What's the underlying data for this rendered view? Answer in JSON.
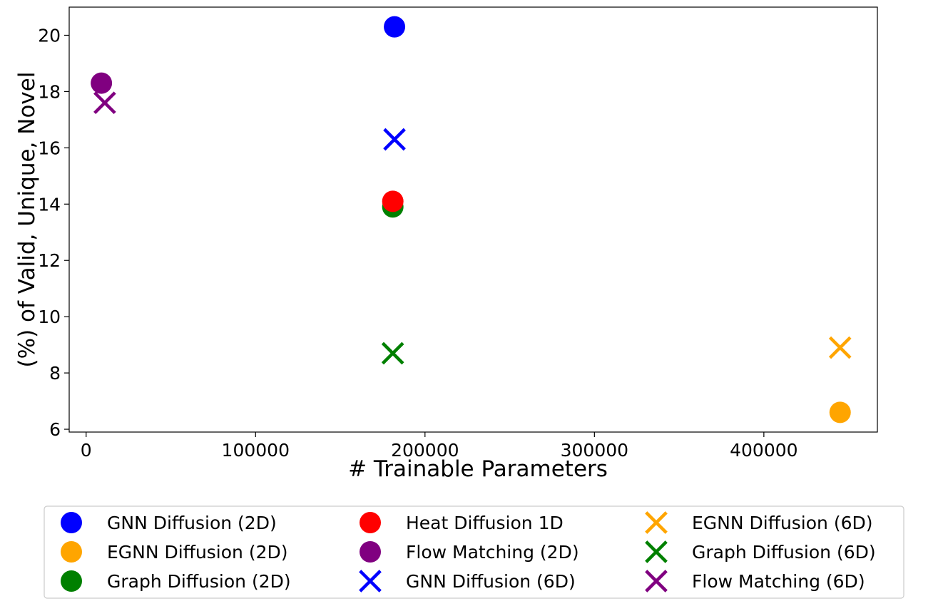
{
  "chart_data": {
    "type": "scatter",
    "title": "",
    "xlabel": "# Trainable Parameters",
    "ylabel": "(%) of Valid, Unique, Novel",
    "xlim": [
      -10000,
      467000
    ],
    "ylim": [
      5.9,
      21.0
    ],
    "xticks": [
      0,
      100000,
      200000,
      300000,
      400000
    ],
    "yticks": [
      6,
      8,
      10,
      12,
      14,
      16,
      18,
      20
    ],
    "grid": false,
    "legend_position": "bottom",
    "series": [
      {
        "name": "GNN Diffusion (2D)",
        "marker": "circle",
        "color": "#0000ff",
        "x": [
          182000
        ],
        "y": [
          20.3
        ]
      },
      {
        "name": "EGNN Diffusion (2D)",
        "marker": "circle",
        "color": "#ffa500",
        "x": [
          445000
        ],
        "y": [
          6.6
        ]
      },
      {
        "name": "Graph Diffusion (2D)",
        "marker": "circle",
        "color": "#008000",
        "x": [
          181000
        ],
        "y": [
          13.9
        ]
      },
      {
        "name": "Heat Diffusion 1D",
        "marker": "circle",
        "color": "#ff0000",
        "x": [
          181000
        ],
        "y": [
          14.1
        ]
      },
      {
        "name": "Flow Matching (2D)",
        "marker": "circle",
        "color": "#800080",
        "x": [
          9000
        ],
        "y": [
          18.3
        ]
      },
      {
        "name": "GNN Diffusion (6D)",
        "marker": "x",
        "color": "#0000ff",
        "x": [
          182000
        ],
        "y": [
          16.3
        ]
      },
      {
        "name": "EGNN Diffusion (6D)",
        "marker": "x",
        "color": "#ffa500",
        "x": [
          445000
        ],
        "y": [
          8.9
        ]
      },
      {
        "name": "Graph Diffusion (6D)",
        "marker": "x",
        "color": "#008000",
        "x": [
          181000
        ],
        "y": [
          8.7
        ]
      },
      {
        "name": "Flow Matching (6D)",
        "marker": "x",
        "color": "#800080",
        "x": [
          11000
        ],
        "y": [
          17.6
        ]
      }
    ]
  }
}
